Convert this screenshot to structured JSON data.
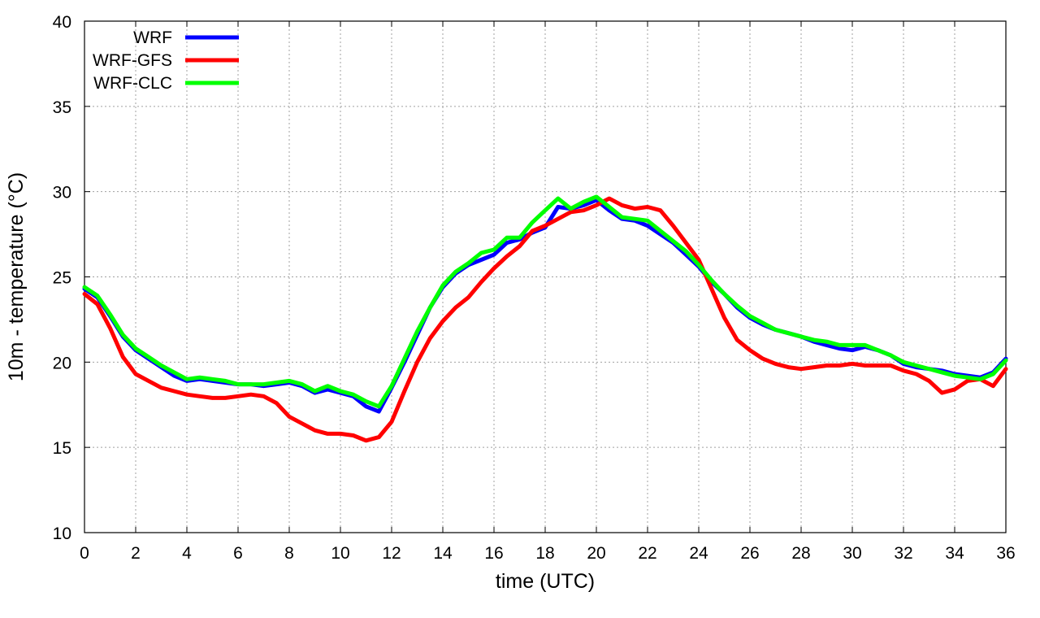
{
  "chart_data": {
    "type": "line",
    "title": "",
    "xlabel": "time (UTC)",
    "ylabel": "10m - temperature (°C)",
    "xlim": [
      0,
      36
    ],
    "ylim": [
      10,
      40
    ],
    "x_ticks": [
      0,
      2,
      4,
      6,
      8,
      10,
      12,
      14,
      16,
      18,
      20,
      22,
      24,
      26,
      28,
      30,
      32,
      34,
      36
    ],
    "y_ticks": [
      10,
      15,
      20,
      25,
      30,
      35,
      40
    ],
    "grid": true,
    "legend_position": "top-left",
    "x": [
      0,
      0.5,
      1,
      1.5,
      2,
      2.5,
      3,
      3.5,
      4,
      4.5,
      5,
      5.5,
      6,
      6.5,
      7,
      7.5,
      8,
      8.5,
      9,
      9.5,
      10,
      10.5,
      11,
      11.5,
      12,
      12.5,
      13,
      13.5,
      14,
      14.5,
      15,
      15.5,
      16,
      16.5,
      17,
      17.5,
      18,
      18.5,
      19,
      19.5,
      20,
      20.5,
      21,
      21.5,
      22,
      22.5,
      23,
      23.5,
      24,
      24.5,
      25,
      25.5,
      26,
      26.5,
      27,
      27.5,
      28,
      28.5,
      29,
      29.5,
      30,
      30.5,
      31,
      31.5,
      32,
      32.5,
      33,
      33.5,
      34,
      34.5,
      35,
      35.5,
      36
    ],
    "series": [
      {
        "name": "WRF",
        "color": "#0000ff",
        "values": [
          24.3,
          23.8,
          22.7,
          21.5,
          20.7,
          20.2,
          19.7,
          19.2,
          18.9,
          19.0,
          18.9,
          18.8,
          18.7,
          18.7,
          18.6,
          18.7,
          18.8,
          18.6,
          18.2,
          18.4,
          18.2,
          18.0,
          17.4,
          17.1,
          18.5,
          20.0,
          21.6,
          23.2,
          24.4,
          25.2,
          25.7,
          26.0,
          26.3,
          27.0,
          27.2,
          27.6,
          27.9,
          29.1,
          29.0,
          29.2,
          29.5,
          28.9,
          28.4,
          28.3,
          28.0,
          27.5,
          27.0,
          26.3,
          25.6,
          24.7,
          24.0,
          23.2,
          22.6,
          22.2,
          21.9,
          21.7,
          21.5,
          21.2,
          21.0,
          20.8,
          20.7,
          20.9,
          20.7,
          20.4,
          19.9,
          19.7,
          19.6,
          19.5,
          19.3,
          19.2,
          19.1,
          19.4,
          20.2
        ]
      },
      {
        "name": "WRF-GFS",
        "color": "#ff0000",
        "values": [
          24.0,
          23.4,
          22.0,
          20.3,
          19.3,
          18.9,
          18.5,
          18.3,
          18.1,
          18.0,
          17.9,
          17.9,
          18.0,
          18.1,
          18.0,
          17.6,
          16.8,
          16.4,
          16.0,
          15.8,
          15.8,
          15.7,
          15.4,
          15.6,
          16.5,
          18.3,
          20.0,
          21.4,
          22.4,
          23.2,
          23.8,
          24.7,
          25.5,
          26.2,
          26.8,
          27.7,
          28.0,
          28.4,
          28.8,
          28.9,
          29.2,
          29.6,
          29.2,
          29.0,
          29.1,
          28.9,
          28.0,
          27.0,
          26.0,
          24.3,
          22.6,
          21.3,
          20.7,
          20.2,
          19.9,
          19.7,
          19.6,
          19.7,
          19.8,
          19.8,
          19.9,
          19.8,
          19.8,
          19.8,
          19.5,
          19.3,
          18.9,
          18.2,
          18.4,
          18.9,
          19.0,
          18.6,
          19.6
        ]
      },
      {
        "name": "WRF-CLC",
        "color": "#00ff00",
        "values": [
          24.4,
          23.9,
          22.8,
          21.6,
          20.8,
          20.3,
          19.8,
          19.4,
          19.0,
          19.1,
          19.0,
          18.9,
          18.7,
          18.7,
          18.7,
          18.8,
          18.9,
          18.7,
          18.3,
          18.6,
          18.3,
          18.1,
          17.7,
          17.4,
          18.6,
          20.2,
          21.8,
          23.2,
          24.5,
          25.3,
          25.8,
          26.4,
          26.6,
          27.3,
          27.3,
          28.2,
          28.9,
          29.6,
          29.0,
          29.4,
          29.7,
          29.1,
          28.5,
          28.4,
          28.3,
          27.7,
          27.1,
          26.5,
          25.7,
          24.8,
          24.0,
          23.3,
          22.7,
          22.3,
          21.9,
          21.7,
          21.5,
          21.3,
          21.2,
          21.0,
          21.0,
          21.0,
          20.7,
          20.4,
          20.0,
          19.8,
          19.6,
          19.4,
          19.2,
          19.1,
          19.0,
          19.3,
          20.1
        ]
      }
    ]
  }
}
